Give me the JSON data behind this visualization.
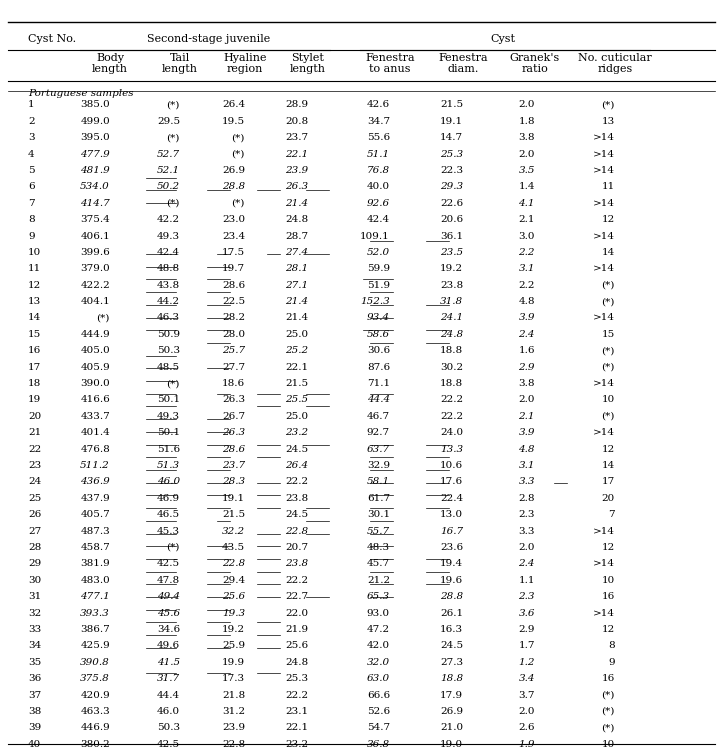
{
  "col_headers_line1": [
    "Cyst No.",
    "Second-stage juvenile",
    "",
    "",
    "",
    "Cyst",
    "",
    "",
    ""
  ],
  "col_headers_line2": [
    "",
    "Body\nlength",
    "Tail\nlength",
    "Hyaline\nregion",
    "Stylet\nlength",
    "Fenestra\nto anus",
    "Fenestra\ndiam.",
    "Granek's\nratio",
    "No. cuticular\nridges"
  ],
  "section_label": "Portuguese samples",
  "rows": [
    [
      "1",
      "385.0",
      "(*)",
      "26.4",
      "28.9",
      "42.6",
      "21.5",
      "2.0",
      "(*)"
    ],
    [
      "2",
      "499.0",
      "29.5",
      "19.5",
      "20.8",
      "34.7",
      "19.1",
      "1.8",
      "13"
    ],
    [
      "3",
      "395.0",
      "(*)",
      "(*)",
      "23.7",
      "55.6",
      "14.7",
      "3.8",
      ">14"
    ],
    [
      "4",
      "477.9",
      "52.7",
      "(*)",
      "22.1",
      "51.1",
      "25.3",
      "2.0",
      ">14"
    ],
    [
      "5",
      "481.9",
      "52.1",
      "26.9",
      "23.9",
      "76.8",
      "22.3",
      "3.5",
      ">14"
    ],
    [
      "6",
      "534.0",
      "50.2",
      "28.8",
      "26.3",
      "40.0",
      "29.3",
      "1.4",
      "11"
    ],
    [
      "7",
      "414.7",
      "(*)",
      "(*)",
      "21.4",
      "92.6",
      "22.6",
      "4.1",
      ">14"
    ],
    [
      "8",
      "375.4",
      "42.2",
      "23.0",
      "24.8",
      "42.4",
      "20.6",
      "2.1",
      "12"
    ],
    [
      "9",
      "406.1",
      "49.3",
      "23.4",
      "28.7",
      "109.1",
      "36.1",
      "3.0",
      ">14"
    ],
    [
      "10",
      "399.6",
      "42.4",
      "17.5",
      "27.4",
      "52.0",
      "23.5",
      "2.2",
      "14"
    ],
    [
      "11",
      "379.0",
      "48.8",
      "19.7",
      "28.1",
      "59.9",
      "19.2",
      "3.1",
      ">14"
    ],
    [
      "12",
      "422.2",
      "43.8",
      "28.6",
      "27.1",
      "51.9",
      "23.8",
      "2.2",
      "(*)"
    ],
    [
      "13",
      "404.1",
      "44.2",
      "22.5",
      "21.4",
      "152.3",
      "31.8",
      "4.8",
      "(*)"
    ],
    [
      "14",
      "(*)",
      "46.3",
      "28.2",
      "21.4",
      "93.4",
      "24.1",
      "3.9",
      ">14"
    ],
    [
      "15",
      "444.9",
      "50.9",
      "28.0",
      "25.0",
      "58.6",
      "24.8",
      "2.4",
      "15"
    ],
    [
      "16",
      "405.0",
      "50.3",
      "25.7",
      "25.2",
      "30.6",
      "18.8",
      "1.6",
      "(*)"
    ],
    [
      "17",
      "405.9",
      "48.5",
      "27.7",
      "22.1",
      "87.6",
      "30.2",
      "2.9",
      "(*)"
    ],
    [
      "18",
      "390.0",
      "(*)",
      "18.6",
      "21.5",
      "71.1",
      "18.8",
      "3.8",
      ">14"
    ],
    [
      "19",
      "416.6",
      "50.1",
      "26.3",
      "25.5",
      "44.4",
      "22.2",
      "2.0",
      "10"
    ],
    [
      "20",
      "433.7",
      "49.3",
      "26.7",
      "25.0",
      "46.7",
      "22.2",
      "2.1",
      "(*)"
    ],
    [
      "21",
      "401.4",
      "50.1",
      "26.3",
      "23.2",
      "92.7",
      "24.0",
      "3.9",
      ">14"
    ],
    [
      "22",
      "476.8",
      "51.6",
      "28.6",
      "24.5",
      "63.7",
      "13.3",
      "4.8",
      "12"
    ],
    [
      "23",
      "511.2",
      "51.3",
      "23.7",
      "26.4",
      "32.9",
      "10.6",
      "3.1",
      "14"
    ],
    [
      "24",
      "436.9",
      "46.0",
      "28.3",
      "22.2",
      "58.1",
      "17.6",
      "3.3",
      "17"
    ],
    [
      "25",
      "437.9",
      "46.9",
      "19.1",
      "23.8",
      "61.7",
      "22.4",
      "2.8",
      "20"
    ],
    [
      "26",
      "405.7",
      "46.5",
      "21.5",
      "24.5",
      "30.1",
      "13.0",
      "2.3",
      "7"
    ],
    [
      "27",
      "487.3",
      "45.3",
      "32.2",
      "22.8",
      "55.7",
      "16.7",
      "3.3",
      ">14"
    ],
    [
      "28",
      "458.7",
      "(*)",
      "43.5",
      "20.7",
      "48.3",
      "23.6",
      "2.0",
      "12"
    ],
    [
      "29",
      "381.9",
      "42.5",
      "22.8",
      "23.8",
      "45.7",
      "19.4",
      "2.4",
      ">14"
    ],
    [
      "30",
      "483.0",
      "47.8",
      "29.4",
      "22.2",
      "21.2",
      "19.6",
      "1.1",
      "10"
    ],
    [
      "31",
      "477.1",
      "49.4",
      "25.6",
      "22.7",
      "65.3",
      "28.8",
      "2.3",
      "16"
    ],
    [
      "32",
      "393.3",
      "45.6",
      "19.3",
      "22.0",
      "93.0",
      "26.1",
      "3.6",
      ">14"
    ],
    [
      "33",
      "386.7",
      "34.6",
      "19.2",
      "21.9",
      "47.2",
      "16.3",
      "2.9",
      "12"
    ],
    [
      "34",
      "425.9",
      "49.6",
      "25.9",
      "25.6",
      "42.0",
      "24.5",
      "1.7",
      "8"
    ],
    [
      "35",
      "390.8",
      "41.5",
      "19.9",
      "24.8",
      "32.0",
      "27.3",
      "1.2",
      "9"
    ],
    [
      "36",
      "375.8",
      "31.7",
      "17.3",
      "25.3",
      "63.0",
      "18.8",
      "3.4",
      "16"
    ],
    [
      "37",
      "420.9",
      "44.4",
      "21.8",
      "22.2",
      "66.6",
      "17.9",
      "3.7",
      "(*)"
    ],
    [
      "38",
      "463.3",
      "46.0",
      "31.2",
      "23.1",
      "52.6",
      "26.9",
      "2.0",
      "(*)"
    ],
    [
      "39",
      "446.9",
      "50.3",
      "23.9",
      "22.1",
      "54.7",
      "21.0",
      "2.6",
      "(*)"
    ],
    [
      "40",
      "380.2",
      "42.5",
      "22.8",
      "23.2",
      "36.8",
      "19.0",
      "1.9",
      "10"
    ]
  ],
  "underline": {
    "0": [
      1
    ],
    "1": [
      1,
      2,
      3,
      4
    ],
    "2": [
      1
    ],
    "3": [],
    "4": [],
    "5": [
      5,
      6
    ],
    "6": [
      1,
      2,
      3,
      4
    ],
    "7": [
      1,
      2
    ],
    "8": [
      1,
      2,
      5
    ],
    "9": [
      1,
      2,
      5
    ],
    "10": [
      1,
      2,
      5,
      6
    ],
    "11": [
      1,
      2,
      5
    ],
    "12": [
      1,
      2,
      5,
      6
    ],
    "13": [
      2,
      5,
      6
    ],
    "14": [
      1
    ],
    "15": [
      1,
      2
    ],
    "16": [
      1
    ],
    "17": [
      1,
      2,
      3,
      4,
      5
    ],
    "18": [
      1,
      3,
      4
    ],
    "19": [
      1,
      2
    ],
    "20": [
      1,
      2
    ],
    "21": [
      1,
      2,
      3,
      4,
      5,
      6
    ],
    "22": [
      1,
      2,
      3,
      5,
      6
    ],
    "23": [
      1,
      2,
      5,
      6
    ],
    "24": [
      1,
      2,
      3,
      5,
      6,
      8
    ],
    "25": [
      1,
      2,
      3,
      5,
      6
    ],
    "26": [
      1,
      2,
      3,
      4,
      5,
      6
    ],
    "27": [
      1,
      2,
      4,
      5
    ],
    "28": [
      1,
      3,
      4,
      5
    ],
    "29": [
      1,
      2,
      3,
      5
    ],
    "30": [
      1,
      2,
      3,
      5,
      6
    ],
    "31": [
      1,
      2,
      3,
      5,
      6
    ],
    "32": [
      1,
      2,
      3,
      5,
      6
    ],
    "33": [
      1,
      2,
      3,
      4,
      5
    ],
    "34": [
      1,
      2
    ],
    "35": [
      1,
      2,
      3
    ],
    "36": [
      1,
      2,
      3
    ],
    "37": [
      1,
      2,
      3
    ],
    "38": [],
    "39": [
      1,
      2,
      3
    ],
    "40": [
      1,
      2,
      3
    ]
  },
  "italic": {
    "0": [],
    "1": [],
    "2": [],
    "3": [
      1,
      2,
      4,
      5,
      6
    ],
    "4": [
      1,
      2,
      4,
      5,
      7
    ],
    "5": [
      1,
      2,
      3,
      4,
      6
    ],
    "6": [
      1,
      4,
      5,
      7
    ],
    "7": [],
    "8": [],
    "9": [
      4,
      5,
      6,
      7
    ],
    "10": [
      4,
      7
    ],
    "11": [
      4
    ],
    "12": [
      4,
      5,
      6
    ],
    "13": [
      5,
      6,
      7
    ],
    "14": [
      5,
      6,
      7
    ],
    "15": [
      3,
      4
    ],
    "16": [
      7
    ],
    "17": [],
    "18": [
      4,
      5
    ],
    "19": [
      7
    ],
    "20": [
      3,
      4,
      7
    ],
    "21": [
      3,
      5,
      6,
      7
    ],
    "22": [
      1,
      2,
      3,
      4,
      7
    ],
    "23": [
      1,
      2,
      3,
      5,
      7
    ],
    "24": [],
    "25": [],
    "26": [
      3,
      4,
      5,
      6
    ],
    "27": [],
    "28": [
      3,
      4,
      7
    ],
    "29": [],
    "30": [
      1,
      2,
      3,
      5,
      6,
      7
    ],
    "31": [
      1,
      2,
      3,
      7
    ],
    "32": [],
    "33": [],
    "34": [
      1,
      2,
      5,
      7
    ],
    "35": [
      1,
      2,
      5,
      6,
      7
    ],
    "36": [],
    "37": [],
    "38": [],
    "39": [
      5,
      7
    ],
    "40": [
      1,
      5,
      7
    ]
  },
  "background": "#ffffff",
  "text_color": "#000000",
  "font_size": 7.5,
  "header_font_size": 8.0
}
